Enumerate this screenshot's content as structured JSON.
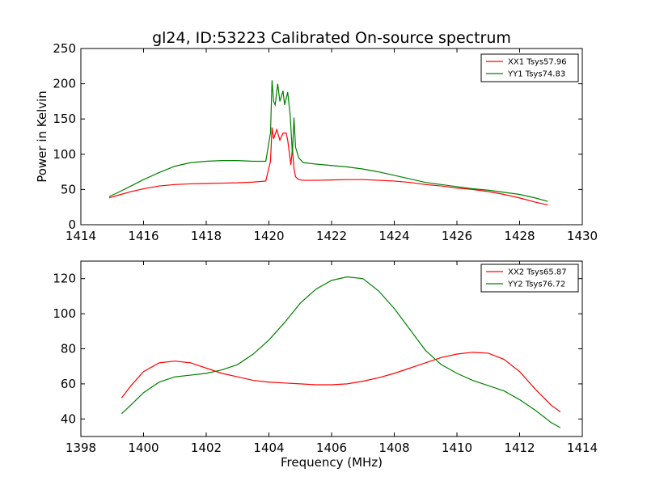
{
  "title": "gl24, ID:53223 Calibrated On-source spectrum",
  "colors": {
    "red": "#ff0000",
    "green": "#008000"
  },
  "chart_data": [
    {
      "type": "line",
      "xlim": [
        1414,
        1430
      ],
      "ylim": [
        0,
        250
      ],
      "xticks": [
        1414,
        1416,
        1418,
        1420,
        1422,
        1424,
        1426,
        1428,
        1430
      ],
      "yticks": [
        0,
        50,
        100,
        150,
        200,
        250
      ],
      "xlabel": "",
      "ylabel": "Power in Kelvin",
      "legend_position": "top-right",
      "series": [
        {
          "name": "XX1 Tsys57.96",
          "color": "#ff0000",
          "x": [
            1414.9,
            1415.2,
            1415.6,
            1416.0,
            1416.5,
            1417.0,
            1417.5,
            1418.0,
            1418.5,
            1419.0,
            1419.5,
            1419.9,
            1420.05,
            1420.1,
            1420.15,
            1420.25,
            1420.35,
            1420.45,
            1420.55,
            1420.6,
            1420.7,
            1420.75,
            1420.8,
            1420.85,
            1420.95,
            1421.1,
            1421.5,
            1422.0,
            1422.5,
            1423.0,
            1423.5,
            1424.0,
            1424.5,
            1425.0,
            1425.5,
            1426.0,
            1426.5,
            1427.0,
            1427.5,
            1428.0,
            1428.5,
            1428.9
          ],
          "y": [
            38,
            42,
            47,
            51,
            55,
            57,
            58,
            58.5,
            59,
            59.5,
            60.5,
            62,
            90,
            138,
            122,
            135,
            120,
            130,
            130,
            120,
            85,
            108,
            80,
            68,
            64,
            63,
            63,
            63.5,
            64,
            64,
            63,
            62,
            60,
            57,
            55,
            52,
            50,
            47,
            43,
            38,
            32,
            28
          ]
        },
        {
          "name": "YY1 Tsys74.83",
          "color": "#008000",
          "x": [
            1414.9,
            1415.2,
            1415.6,
            1416.0,
            1416.5,
            1417.0,
            1417.5,
            1418.0,
            1418.5,
            1419.0,
            1419.5,
            1419.9,
            1420.05,
            1420.1,
            1420.15,
            1420.2,
            1420.28,
            1420.35,
            1420.45,
            1420.5,
            1420.6,
            1420.68,
            1420.75,
            1420.8,
            1420.85,
            1420.95,
            1421.1,
            1421.5,
            1422.0,
            1422.5,
            1423.0,
            1423.5,
            1424.0,
            1424.5,
            1425.0,
            1425.5,
            1426.0,
            1426.5,
            1427.0,
            1427.5,
            1428.0,
            1428.5,
            1428.9
          ],
          "y": [
            40,
            46,
            55,
            64,
            74,
            83,
            88,
            90,
            91,
            91,
            90,
            90,
            130,
            205,
            175,
            170,
            200,
            175,
            190,
            170,
            188,
            155,
            100,
            152,
            110,
            95,
            88,
            86,
            84,
            82,
            79,
            75,
            70,
            65,
            60,
            57,
            54,
            51,
            49,
            46,
            43,
            38,
            33
          ]
        }
      ]
    },
    {
      "type": "line",
      "xlim": [
        1398,
        1414
      ],
      "ylim": [
        30,
        130
      ],
      "xticks": [
        1398,
        1400,
        1402,
        1404,
        1406,
        1408,
        1410,
        1412,
        1414
      ],
      "yticks": [
        40,
        60,
        80,
        100,
        120
      ],
      "xlabel": "Frequency (MHz)",
      "ylabel": "",
      "legend_position": "top-right",
      "series": [
        {
          "name": "XX2 Tsys65.87",
          "color": "#ff0000",
          "x": [
            1399.3,
            1399.6,
            1400.0,
            1400.5,
            1401.0,
            1401.5,
            1402.0,
            1402.5,
            1403.0,
            1403.5,
            1404.0,
            1404.5,
            1405.0,
            1405.5,
            1406.0,
            1406.5,
            1407.0,
            1407.5,
            1408.0,
            1408.5,
            1409.0,
            1409.5,
            1410.0,
            1410.5,
            1411.0,
            1411.5,
            1412.0,
            1412.5,
            1413.0,
            1413.3
          ],
          "y": [
            52,
            59,
            67,
            72,
            73,
            72,
            69,
            66,
            64,
            62,
            61,
            60.5,
            60,
            59.5,
            59.5,
            60,
            61.5,
            63.5,
            66,
            69,
            72,
            75,
            77,
            78,
            77.5,
            74,
            67,
            57,
            48,
            44
          ]
        },
        {
          "name": "YY2 Tsys76.72",
          "color": "#008000",
          "x": [
            1399.3,
            1399.6,
            1400.0,
            1400.5,
            1401.0,
            1401.5,
            1402.0,
            1402.5,
            1403.0,
            1403.5,
            1404.0,
            1404.5,
            1405.0,
            1405.5,
            1406.0,
            1406.5,
            1407.0,
            1407.5,
            1408.0,
            1408.5,
            1409.0,
            1409.5,
            1410.0,
            1410.5,
            1411.0,
            1411.5,
            1412.0,
            1412.5,
            1413.0,
            1413.3
          ],
          "y": [
            43,
            48,
            55,
            61,
            64,
            65,
            66,
            68,
            71,
            77,
            85,
            95,
            106,
            114,
            119,
            121,
            120,
            113,
            103,
            91,
            79,
            71,
            66,
            62,
            59,
            56,
            51,
            45,
            38,
            35
          ]
        }
      ]
    }
  ]
}
